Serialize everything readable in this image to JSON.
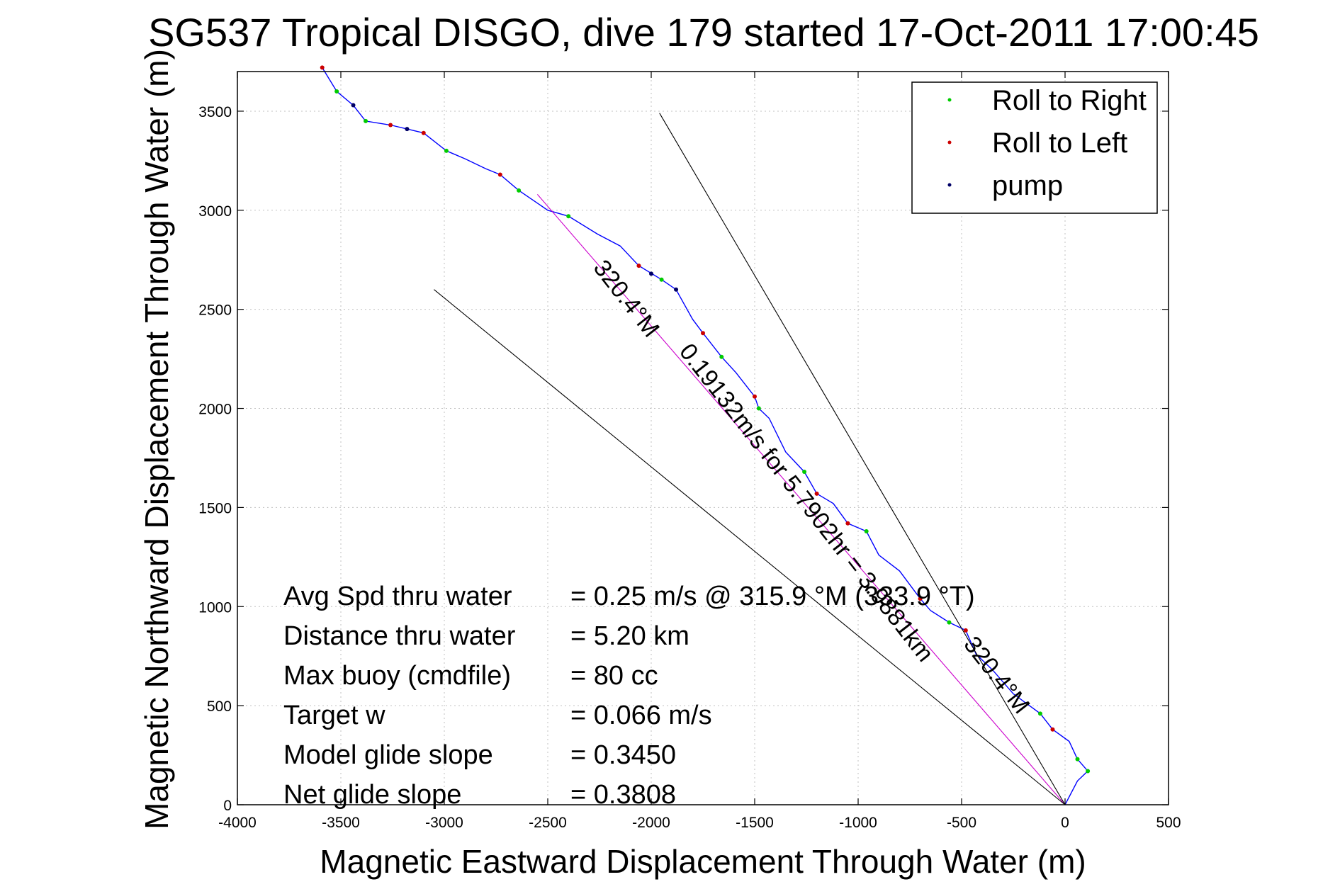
{
  "chart_data": {
    "type": "line",
    "title": "SG537 Tropical DISGO, dive 179 started 17-Oct-2011 17:00:45",
    "xlabel": "Magnetic Eastward Displacement Through Water (m)",
    "ylabel": "Magnetic Northward Displacement Through Water (m)",
    "xlim": [
      -4000,
      500
    ],
    "ylim": [
      0,
      3700
    ],
    "grid": true,
    "x_ticks": [
      -4000,
      -3500,
      -3000,
      -2500,
      -2000,
      -1500,
      -1000,
      -500,
      0,
      500
    ],
    "y_ticks": [
      0,
      500,
      1000,
      1500,
      2000,
      2500,
      3000,
      3500
    ],
    "legend_position": "top-right",
    "legend": [
      {
        "label": "Roll to Right",
        "color": "#00cc00"
      },
      {
        "label": "Roll to Left",
        "color": "#cc0000"
      },
      {
        "label": "pump",
        "color": "#000066"
      }
    ],
    "series": [
      {
        "color": "#0000ff",
        "x": [
          0,
          60,
          110,
          60,
          20,
          -60,
          -120,
          -250,
          -350,
          -430,
          -480,
          -560,
          -650,
          -700,
          -800,
          -900,
          -960,
          -1050,
          -1120,
          -1200,
          -1260,
          -1350,
          -1430,
          -1480,
          -1500,
          -1590,
          -1660,
          -1750,
          -1800,
          -1880,
          -1950,
          -2060,
          -2150,
          -2260,
          -2400,
          -2500,
          -2640,
          -2730,
          -2800,
          -2900,
          -2990,
          -3100,
          -3180,
          -3260,
          -3380,
          -3440,
          -3520,
          -3590
        ],
        "y": [
          0,
          120,
          170,
          230,
          320,
          380,
          460,
          560,
          680,
          760,
          880,
          920,
          980,
          1040,
          1180,
          1260,
          1380,
          1420,
          1520,
          1570,
          1680,
          1780,
          1950,
          2000,
          2060,
          2180,
          2260,
          2380,
          2450,
          2600,
          2650,
          2720,
          2820,
          2880,
          2970,
          3000,
          3100,
          3180,
          3210,
          3260,
          3300,
          3390,
          3410,
          3430,
          3450,
          3530,
          3600,
          3720
        ]
      },
      {
        "color": "#cc00cc",
        "x": [
          0,
          -2550
        ],
        "y": [
          0,
          3080
        ]
      },
      {
        "color": "#000000",
        "x": [
          0,
          -3050
        ],
        "y": [
          0,
          2600
        ]
      },
      {
        "color": "#000000",
        "x": [
          0,
          -1960
        ],
        "y": [
          0,
          3490
        ]
      }
    ],
    "markers": {
      "roll_right": {
        "color": "#00cc00",
        "x": [
          110,
          60,
          -120,
          -560,
          -960,
          -1260,
          -1480,
          -1660,
          -1950,
          -2400,
          -2640,
          -2990,
          -3380,
          -3520
        ],
        "y": [
          170,
          230,
          460,
          920,
          1380,
          1680,
          2000,
          2260,
          2650,
          2970,
          3100,
          3300,
          3450,
          3600
        ]
      },
      "roll_left": {
        "color": "#cc0000",
        "x": [
          -60,
          -480,
          -700,
          -1050,
          -1200,
          -1500,
          -1750,
          -2060,
          -2730,
          -3100,
          -3260,
          -3590
        ],
        "y": [
          380,
          880,
          1040,
          1420,
          1570,
          2060,
          2380,
          2720,
          3180,
          3390,
          3430,
          3720
        ]
      },
      "pump": {
        "color": "#000066",
        "x": [
          -2000,
          -3440,
          -3180,
          -1880
        ],
        "y": [
          2680,
          3530,
          3410,
          2600
        ]
      }
    },
    "annotations": [
      {
        "text": "320.4°M",
        "x": -2150,
        "y": 2530,
        "angle": 52
      },
      {
        "text": "0.19132m/s for 5.7902hr = 3.9881km",
        "x": -1280,
        "y": 1500,
        "angle": 52
      },
      {
        "text": "320.4°M",
        "x": -360,
        "y": 630,
        "angle": 52
      }
    ]
  },
  "stats": [
    {
      "label": "Avg Spd thru water",
      "value": "=  0.25 m/s @ 315.9 °M (333.9 °T)"
    },
    {
      "label": "Distance thru water",
      "value": "=  5.20 km"
    },
    {
      "label": "Max buoy (cmdfile)",
      "value": "= 80 cc"
    },
    {
      "label": "Target w",
      "value": "= 0.066 m/s"
    },
    {
      "label": "Model glide slope",
      "value": "= 0.3450"
    },
    {
      "label": "Net glide slope",
      "value": "= 0.3808"
    }
  ]
}
